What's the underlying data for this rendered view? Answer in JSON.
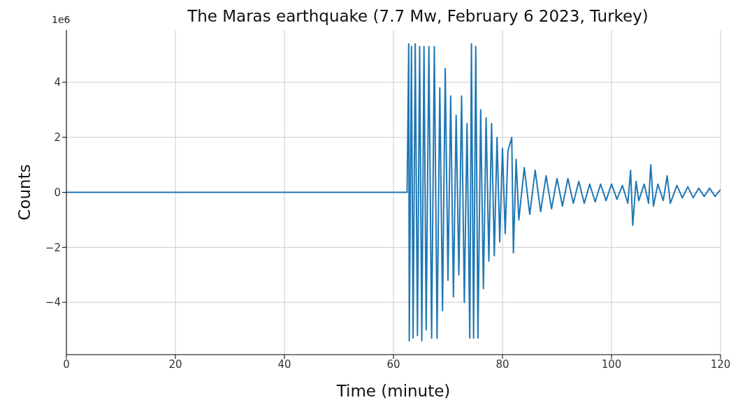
{
  "chart_data": {
    "type": "line",
    "title": "The Maras earthquake (7.7 Mw, February 6 2023, Turkey)",
    "xlabel": "Time (minute)",
    "ylabel": "Counts",
    "annotations": [
      "1e6"
    ],
    "x": [
      0,
      62.5,
      62.8,
      62.9,
      63.3,
      63.6,
      64,
      64.4,
      64.8,
      65.2,
      65.6,
      66,
      66.5,
      67,
      67.5,
      68,
      68.5,
      69,
      69.5,
      70,
      70.5,
      71,
      71.5,
      72,
      72.5,
      73,
      73.5,
      74,
      74.3,
      74.7,
      75.1,
      75.5,
      76,
      76.5,
      77,
      77.5,
      78,
      78.5,
      79,
      79.5,
      80,
      80.5,
      81,
      81.7,
      82,
      82.5,
      83,
      84,
      85,
      86,
      87,
      88,
      89,
      90,
      91,
      92,
      93,
      94,
      95,
      96,
      97,
      98,
      99,
      100,
      101,
      102,
      103,
      103.5,
      103.9,
      104.5,
      105,
      106,
      106.8,
      107.2,
      107.7,
      108.5,
      109.5,
      110.2,
      110.8,
      112,
      113,
      114,
      115,
      116,
      117,
      118,
      119,
      120
    ],
    "series": [
      {
        "color": "#1f77b4",
        "values": [
          0,
          0,
          5.4,
          -5.4,
          5.3,
          -5.3,
          5.4,
          -5.2,
          5.3,
          -5.4,
          5.3,
          -5.0,
          5.3,
          -5.3,
          5.3,
          -5.3,
          3.8,
          -4.3,
          4.5,
          -3.2,
          3.5,
          -3.8,
          2.8,
          -3.0,
          3.5,
          -4.0,
          2.5,
          -5.3,
          5.4,
          -5.3,
          5.3,
          -5.3,
          3.0,
          -3.5,
          2.7,
          -2.5,
          2.5,
          -2.3,
          2.0,
          -1.8,
          1.6,
          -1.5,
          1.5,
          2.0,
          -2.2,
          1.2,
          -1.0,
          0.9,
          -0.8,
          0.8,
          -0.7,
          0.6,
          -0.6,
          0.5,
          -0.5,
          0.5,
          -0.4,
          0.4,
          -0.4,
          0.3,
          -0.35,
          0.3,
          -0.3,
          0.3,
          -0.25,
          0.25,
          -0.4,
          0.8,
          -1.2,
          0.4,
          -0.3,
          0.3,
          -0.4,
          1.0,
          -0.5,
          0.3,
          -0.3,
          0.6,
          -0.4,
          0.25,
          -0.2,
          0.2,
          -0.2,
          0.15,
          -0.15,
          0.15,
          -0.15,
          0.1
        ]
      }
    ],
    "xlim": [
      0,
      120
    ],
    "xticks": [
      0,
      20,
      40,
      60,
      80,
      100,
      120
    ],
    "ylim": [
      -5.9,
      5.9
    ],
    "yticks": [
      -4,
      -2,
      0,
      2,
      4
    ],
    "grid": true,
    "legend": false,
    "marker": "none",
    "line_style": "solid"
  }
}
